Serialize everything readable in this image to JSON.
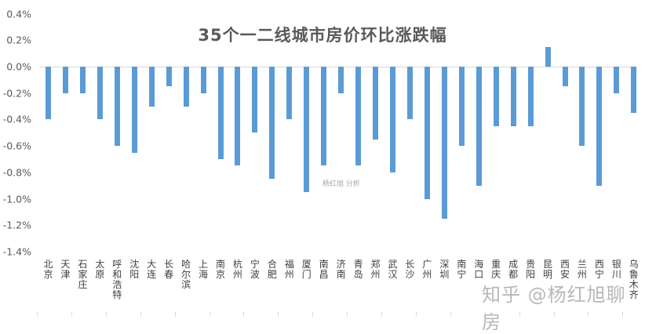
{
  "chart_data": {
    "type": "bar",
    "title": "35个一二线城市房价环比涨跌幅",
    "xlabel": "",
    "ylabel": "",
    "ylim": [
      -1.4,
      0.4
    ],
    "yticks": [
      "0.4%",
      "0.2%",
      "0.0%",
      "-0.2%",
      "-0.4%",
      "-0.6%",
      "-0.8%",
      "-1.0%",
      "-1.2%",
      "-1.4%"
    ],
    "ytick_values": [
      0.4,
      0.2,
      0.0,
      -0.2,
      -0.4,
      -0.6,
      -0.8,
      -1.0,
      -1.2,
      -1.4
    ],
    "unit": "%",
    "grid": false,
    "legend": null,
    "bar_color": "#5b9bd5",
    "categories": [
      "北京",
      "天津",
      "石家庄",
      "太原",
      "呼和浩特",
      "沈阳",
      "大连",
      "长春",
      "哈尔滨",
      "上海",
      "南京",
      "杭州",
      "宁波",
      "合肥",
      "福州",
      "厦门",
      "南昌",
      "济南",
      "青岛",
      "郑州",
      "武汉",
      "长沙",
      "广州",
      "深圳",
      "南宁",
      "海口",
      "重庆",
      "成都",
      "贵阳",
      "昆明",
      "西安",
      "兰州",
      "西宁",
      "银川",
      "乌鲁木齐"
    ],
    "values": [
      -0.4,
      -0.2,
      -0.2,
      -0.4,
      -0.6,
      -0.65,
      -0.3,
      -0.15,
      -0.3,
      -0.2,
      -0.7,
      -0.75,
      -0.5,
      -0.85,
      -0.4,
      -0.95,
      -0.75,
      -0.2,
      -0.75,
      -0.55,
      -0.8,
      -0.4,
      -1.0,
      -1.15,
      -0.6,
      -0.9,
      -0.45,
      -0.45,
      -0.45,
      0.15,
      -0.15,
      -0.6,
      -0.9,
      -0.2,
      -0.35
    ]
  },
  "watermarks": {
    "inner": "杨红旭 分析",
    "footer": "知乎 @杨红旭聊房"
  }
}
